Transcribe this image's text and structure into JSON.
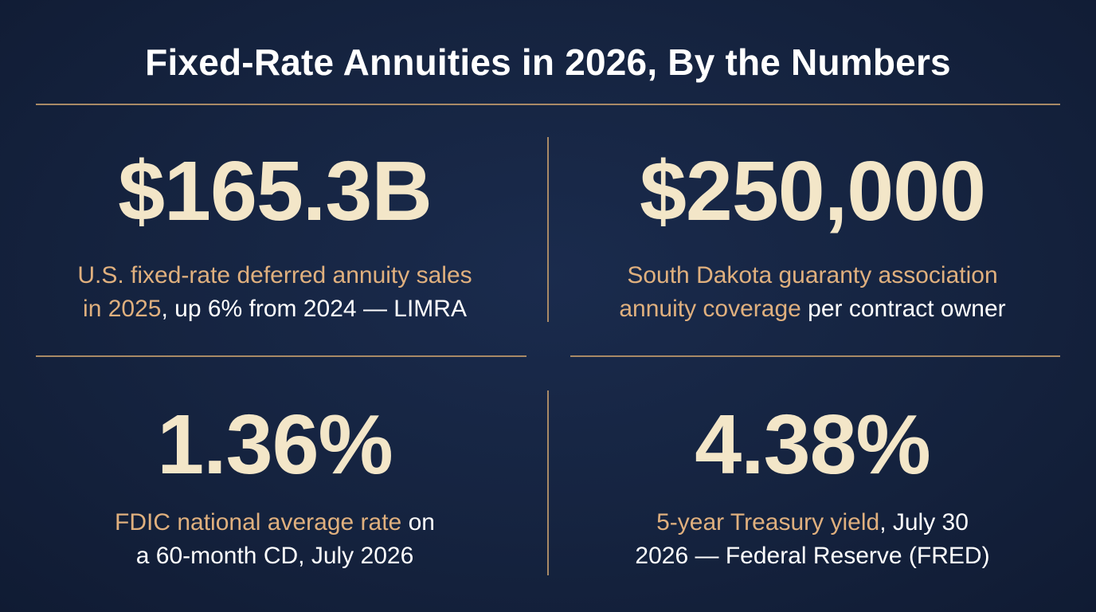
{
  "title": "Fixed-Rate Annuities in 2026, By the Numbers",
  "colors": {
    "background": "#14223f",
    "divider": "#a98a66",
    "stat_value": "#f3e6c8",
    "highlight_text": "#e0b07e",
    "plain_text": "#ffffff"
  },
  "stats": [
    {
      "value": "$165.3B",
      "caption_line1_hl": "U.S. fixed-rate deferred annuity sales",
      "caption_line2_hl": "in 2025",
      "caption_line2_plain": ", up 6% from 2024 — LIMRA"
    },
    {
      "value": "$250,000",
      "caption_line1_hl": "South Dakota guaranty association",
      "caption_line2_hl": "annuity coverage",
      "caption_line2_plain": " per contract owner"
    },
    {
      "value": "1.36%",
      "caption_line1_hl": "FDIC national average rate",
      "caption_line1_plain": " on",
      "caption_line2_plain": "a 60-month CD, July 2026"
    },
    {
      "value": "4.38%",
      "caption_line1_hl": "5-year Treasury yield",
      "caption_line1_plain": ", July 30",
      "caption_line2_plain": "2026 — Federal Reserve (FRED)"
    }
  ]
}
